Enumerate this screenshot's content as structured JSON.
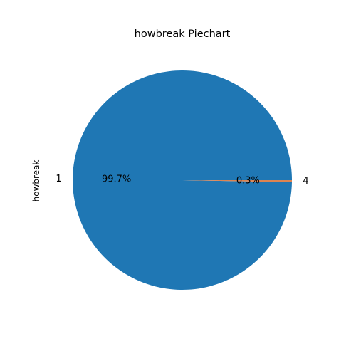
{
  "chart_data": {
    "type": "pie",
    "title": "howbreak Piechart",
    "ylabel": "howbreak",
    "slices": [
      {
        "label": "1",
        "value": 99.7,
        "pct_label": "99.7%",
        "color": "#1f77b4"
      },
      {
        "label": "4",
        "value": 0.3,
        "pct_label": "0.3%",
        "color": "#dd8452"
      }
    ]
  }
}
